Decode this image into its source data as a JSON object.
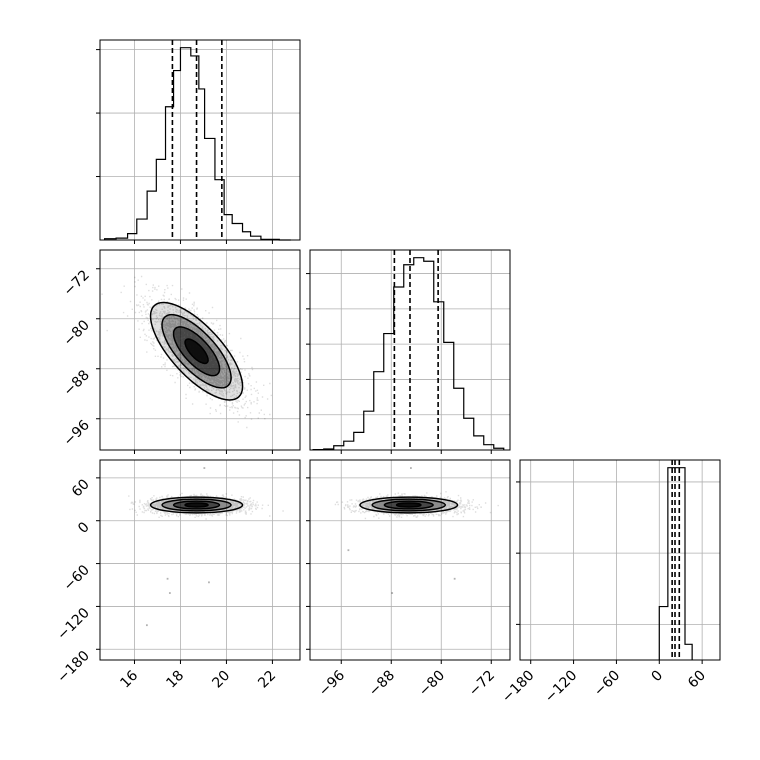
{
  "chart_data": {
    "type": "corner",
    "title": "",
    "parameters": [
      {
        "name": "",
        "range": [
          14.5,
          23.2
        ],
        "ticks": [
          16,
          18,
          20,
          22
        ],
        "quantiles": [
          17.65,
          18.7,
          19.8
        ]
      },
      {
        "name": "",
        "range": [
          -101,
          -69
        ],
        "ticks": [
          -96,
          -88,
          -80,
          -72
        ],
        "quantiles": [
          -87.5,
          -85,
          -80.5
        ]
      },
      {
        "name": "",
        "range": [
          -195,
          85
        ],
        "ticks": [
          -180,
          -120,
          -60,
          0,
          60
        ],
        "quantiles": [
          18,
          22,
          28
        ]
      }
    ],
    "tick_labels": {
      "p0": [
        "16",
        "18",
        "20",
        "22"
      ],
      "p1": [
        "−96",
        "−88",
        "−80",
        "−72"
      ],
      "p2": [
        "−180",
        "−120",
        "−60",
        "0",
        "60"
      ]
    },
    "hist1d": [
      {
        "param": 0,
        "bin_edges": [
          14.7,
          15.2,
          15.7,
          16.1,
          16.55,
          16.95,
          17.35,
          17.7,
          18.0,
          18.45,
          18.8,
          19.05,
          19.5,
          19.9,
          20.25,
          20.7,
          21.05,
          21.5,
          21.9,
          22.3,
          22.8
        ],
        "counts": [
          2,
          3,
          10,
          33,
          77,
          127,
          210,
          267,
          303,
          290,
          238,
          160,
          95,
          40,
          26,
          13,
          6,
          1,
          1,
          0
        ]
      },
      {
        "param": 1,
        "bin_edges": [
          -100.5,
          -98.8,
          -97.2,
          -95.6,
          -94.0,
          -92.4,
          -90.8,
          -89.2,
          -87.6,
          -86.0,
          -84.4,
          -82.8,
          -81.2,
          -79.6,
          -78.0,
          -76.4,
          -74.8,
          -73.2,
          -71.6,
          -70.0
        ],
        "counts": [
          1,
          3,
          12,
          25,
          50,
          110,
          222,
          330,
          462,
          525,
          545,
          535,
          420,
          305,
          175,
          90,
          40,
          15,
          5
        ]
      },
      {
        "param": 2,
        "bin_edges": [
          0,
          12,
          24,
          36,
          46
        ],
        "counts": [
          75,
          270,
          270,
          22
        ]
      }
    ],
    "scatter2d": [
      {
        "x": 0,
        "y": 1,
        "mean": [
          18.7,
          -85.2
        ],
        "sd": [
          1.0,
          3.9
        ],
        "corr": -0.72
      },
      {
        "x": 0,
        "y": 2,
        "mean": [
          18.7,
          22
        ],
        "sd": [
          1.0,
          5.5
        ],
        "corr": 0.0
      },
      {
        "x": 1,
        "y": 2,
        "mean": [
          -85.2,
          22
        ],
        "sd": [
          3.9,
          5.5
        ],
        "corr": 0.0
      }
    ],
    "outliers": {
      "p0_p2": [
        [
          19.0,
          75
        ],
        [
          17.5,
          -100
        ],
        [
          16.5,
          -145
        ],
        [
          17.4,
          -80
        ],
        [
          19.2,
          -85
        ]
      ],
      "p1_p2": [
        [
          -88.0,
          -100
        ],
        [
          -85.0,
          75
        ],
        [
          -95.0,
          -40
        ],
        [
          -78.0,
          -80
        ]
      ]
    },
    "contour_levels": [
      0.118,
      0.393,
      0.675,
      0.865
    ],
    "grid": true,
    "legend": "none",
    "colors": {
      "axis": "#000000",
      "grid": "#b0b0b0",
      "points": "#000000"
    }
  }
}
